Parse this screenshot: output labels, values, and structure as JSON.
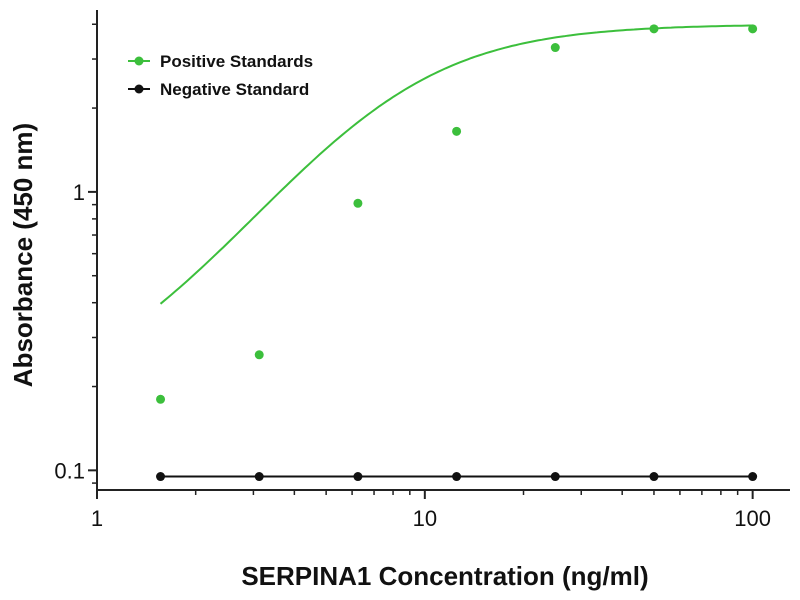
{
  "chart_data": {
    "type": "scatter",
    "xlabel": "SERPINA1 Concentration (ng/ml)",
    "ylabel": "Absorbance (450 nm)",
    "x_scale": "log",
    "y_scale": "log",
    "xlim": [
      1,
      130
    ],
    "ylim": [
      0.085,
      4.5
    ],
    "x_ticks": [
      1,
      10,
      100
    ],
    "x_tick_labels": [
      "1",
      "10",
      "100"
    ],
    "y_ticks": [
      0.1,
      1
    ],
    "y_tick_labels": [
      "0.1",
      "1"
    ],
    "grid": false,
    "legend_position": "top-left",
    "series": [
      {
        "name": "Positive Standards",
        "color": "#3cbf3c",
        "x": [
          1.5625,
          3.125,
          6.25,
          12.5,
          25,
          50,
          100
        ],
        "y": [
          0.18,
          0.26,
          0.91,
          1.65,
          3.3,
          3.85,
          3.85
        ],
        "fit_curve": true
      },
      {
        "name": "Negative Standard",
        "color": "#111111",
        "x": [
          1.5625,
          3.125,
          6.25,
          12.5,
          25,
          50,
          100
        ],
        "y": [
          0.095,
          0.095,
          0.095,
          0.095,
          0.095,
          0.095,
          0.095
        ],
        "fit_curve": false
      }
    ]
  }
}
